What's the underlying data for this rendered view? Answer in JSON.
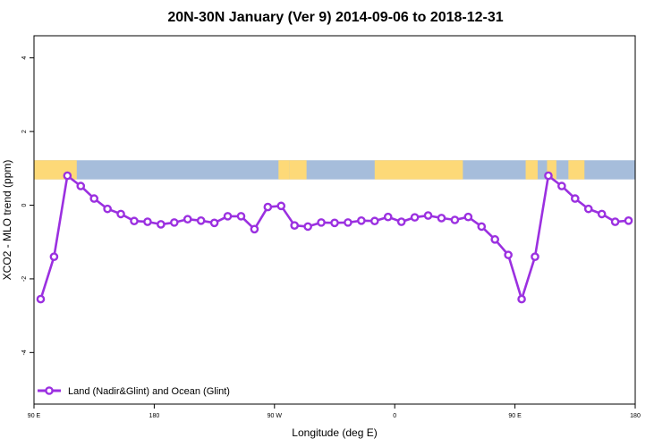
{
  "chart_data": {
    "type": "line",
    "title": "20N-30N January (Ver 9)   2014-09-06 to 2018-12-31",
    "xlabel": "Longitude (deg E)",
    "ylabel": "XCO2 - MLO trend (ppm)",
    "xlim": [
      90,
      540
    ],
    "ylim": [
      -5.4,
      4.6
    ],
    "x_ticks": [
      {
        "value": 90,
        "label": "90 E"
      },
      {
        "value": 180,
        "label": "180"
      },
      {
        "value": 270,
        "label": "90 W"
      },
      {
        "value": 360,
        "label": "0"
      },
      {
        "value": 450,
        "label": "90 E"
      },
      {
        "value": 540,
        "label": "180"
      }
    ],
    "y_ticks": [
      {
        "value": 4,
        "label": "4"
      },
      {
        "value": 2,
        "label": "2"
      },
      {
        "value": 0,
        "label": "0"
      },
      {
        "value": -2,
        "label": "-2"
      },
      {
        "value": -4,
        "label": "-4"
      }
    ],
    "land_ocean_strip": {
      "y_range": [
        0.7,
        1.22
      ],
      "ocean_color": "#a6bddb",
      "land_color": "#fdd978",
      "land_spans": [
        [
          90,
          122
        ],
        [
          273,
          281
        ],
        [
          281,
          294
        ],
        [
          345,
          411
        ],
        [
          458,
          467
        ],
        [
          474,
          481
        ],
        [
          490,
          502
        ]
      ]
    },
    "series": [
      {
        "name": "Land (Nadir&Glint) and Ocean (Glint)",
        "color": "#9b30e0",
        "x": [
          95,
          105,
          115,
          125,
          135,
          145,
          155,
          165,
          175,
          185,
          195,
          205,
          215,
          225,
          235,
          245,
          255,
          265,
          275,
          285,
          295,
          305,
          315,
          325,
          335,
          345,
          355,
          365,
          375,
          385,
          395,
          405,
          415,
          425,
          435,
          445,
          455,
          465,
          475,
          485,
          495,
          505,
          515,
          525,
          535
        ],
        "y": [
          -2.55,
          -1.4,
          0.8,
          0.52,
          0.18,
          -0.1,
          -0.24,
          -0.43,
          -0.45,
          -0.52,
          -0.47,
          -0.38,
          -0.42,
          -0.48,
          -0.3,
          -0.3,
          -0.65,
          -0.05,
          -0.02,
          -0.55,
          -0.58,
          -0.47,
          -0.48,
          -0.47,
          -0.42,
          -0.43,
          -0.32,
          -0.45,
          -0.33,
          -0.28,
          -0.35,
          -0.4,
          -0.32,
          -0.58,
          -0.93,
          -1.35,
          -2.55,
          -1.4,
          0.8,
          0.52,
          0.18,
          -0.1,
          -0.24,
          -0.45,
          -0.42
        ]
      }
    ],
    "legend": {
      "position": "bottom-left"
    }
  }
}
